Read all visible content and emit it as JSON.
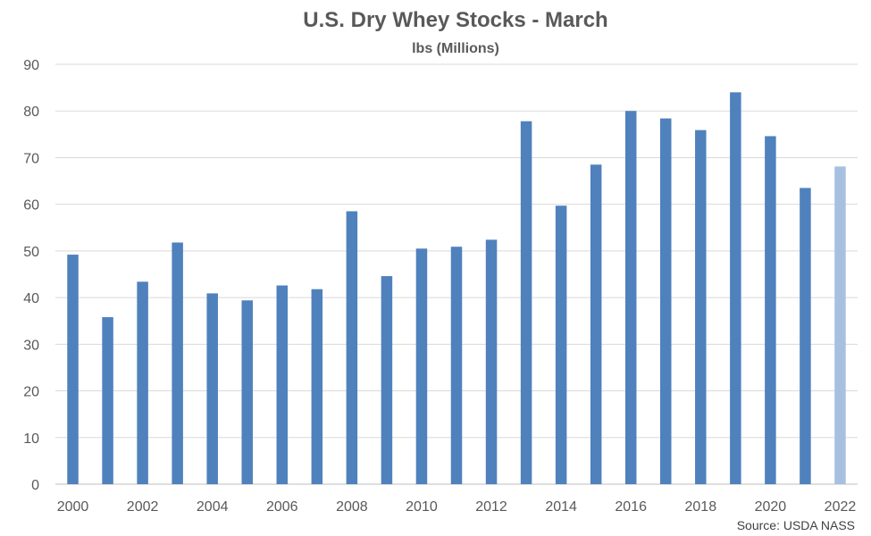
{
  "chart_data": {
    "type": "bar",
    "title": "U.S. Dry Whey Stocks - March",
    "subtitle": "lbs (Millions)",
    "source": "Source: USDA NASS",
    "categories": [
      "2000",
      "2001",
      "2002",
      "2003",
      "2004",
      "2005",
      "2006",
      "2007",
      "2008",
      "2009",
      "2010",
      "2011",
      "2012",
      "2013",
      "2014",
      "2015",
      "2016",
      "2017",
      "2018",
      "2019",
      "2020",
      "2021",
      "2022"
    ],
    "values": [
      49.2,
      35.8,
      43.4,
      51.8,
      40.9,
      39.4,
      42.6,
      41.8,
      58.5,
      44.6,
      50.5,
      50.9,
      52.4,
      77.8,
      59.7,
      68.5,
      80.0,
      78.4,
      75.9,
      84.0,
      74.6,
      63.5,
      68.1
    ],
    "x_tick_labels": [
      "2000",
      "2002",
      "2004",
      "2006",
      "2008",
      "2010",
      "2012",
      "2014",
      "2016",
      "2018",
      "2020",
      "2022"
    ],
    "y_ticks": [
      0,
      10,
      20,
      30,
      40,
      50,
      60,
      70,
      80,
      90
    ],
    "ylim": [
      0,
      90
    ],
    "grid": true,
    "legend": "none",
    "colors": {
      "bar": "#4f81bd",
      "highlight": "#a7c0e0",
      "text": "#595959"
    },
    "highlight_category": "2022"
  }
}
